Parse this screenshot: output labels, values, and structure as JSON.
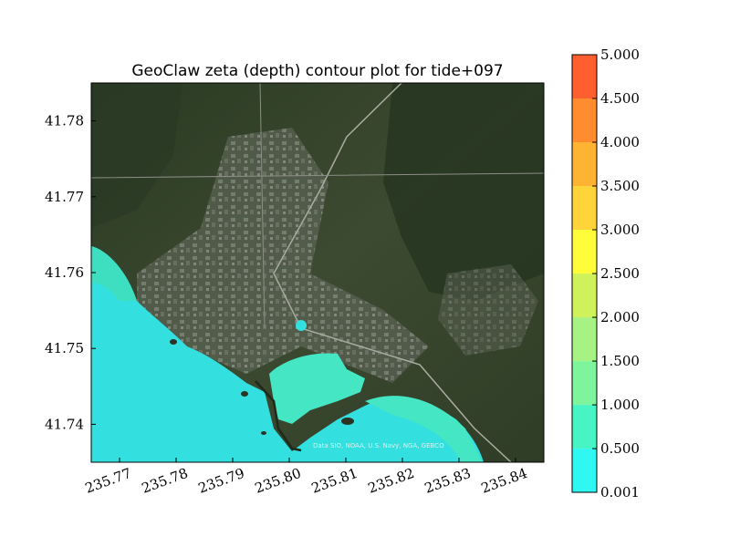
{
  "chart_data": {
    "type": "contour-map",
    "title": "GeoClaw zeta (depth) contour plot for tide+097",
    "xlim": [
      235.765,
      235.845
    ],
    "ylim": [
      41.735,
      41.785
    ],
    "x_ticks": [
      "235.77",
      "235.78",
      "235.79",
      "235.80",
      "235.81",
      "235.82",
      "235.83",
      "235.84"
    ],
    "x_tick_values": [
      235.77,
      235.78,
      235.79,
      235.8,
      235.81,
      235.82,
      235.83,
      235.84
    ],
    "y_ticks": [
      "41.74",
      "41.75",
      "41.76",
      "41.77",
      "41.78"
    ],
    "y_tick_values": [
      41.74,
      41.75,
      41.76,
      41.77,
      41.78
    ],
    "colorbar": {
      "levels": [
        "0.001",
        "0.500",
        "1.000",
        "1.500",
        "2.000",
        "2.500",
        "3.000",
        "3.500",
        "4.000",
        "4.500",
        "5.000"
      ],
      "level_values": [
        0.001,
        0.5,
        1.0,
        1.5,
        2.0,
        2.5,
        3.0,
        3.5,
        4.0,
        4.5,
        5.0
      ],
      "colors": [
        "#2ff7f2",
        "#46f4c4",
        "#7ef59c",
        "#a6f283",
        "#cff25b",
        "#fffd3a",
        "#ffd43a",
        "#ffb332",
        "#ff8c2f",
        "#ff5f2e",
        "#ff3232"
      ]
    },
    "background_credit": "Data SIO, NOAA, U.S. Navy, NGA, GEBCO"
  }
}
